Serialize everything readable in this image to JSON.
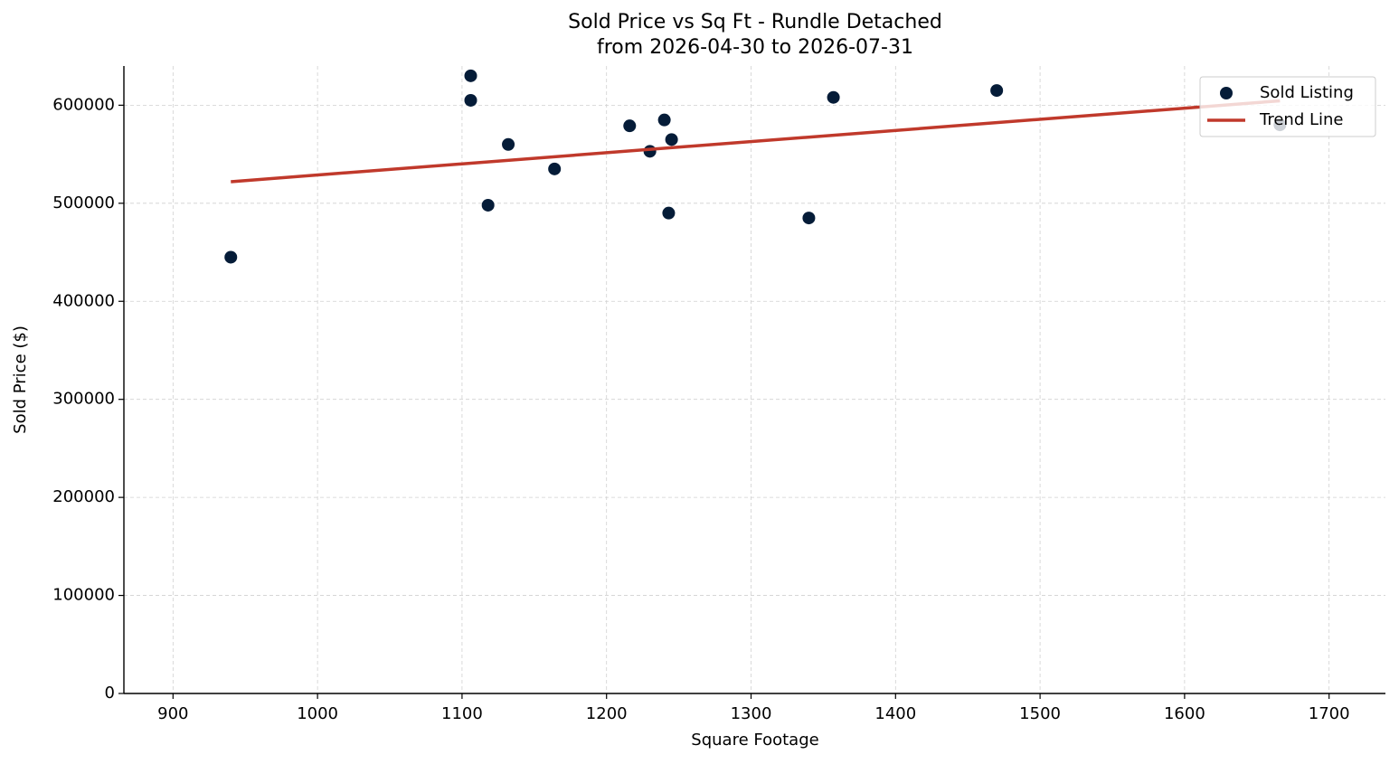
{
  "chart_data": {
    "type": "scatter",
    "title": "Sold Price vs Sq Ft - Rundle Detached",
    "subtitle": "from 2026-04-30 to 2026-07-31",
    "x_label": "Square Footage",
    "y_label": "Sold Price ($)",
    "xlim": [
      866,
      1739
    ],
    "ylim": [
      0,
      640000
    ],
    "xticks": [
      900,
      1000,
      1100,
      1200,
      1300,
      1400,
      1500,
      1600,
      1700
    ],
    "yticks": [
      0,
      100000,
      200000,
      300000,
      400000,
      500000,
      600000
    ],
    "grid": true,
    "legend": "upper-right",
    "series": [
      {
        "name": "Sold Listing",
        "type": "scatter",
        "color": "#051c38",
        "x": [
          940,
          1106,
          1106,
          1118,
          1132,
          1164,
          1216,
          1230,
          1240,
          1243,
          1245,
          1340,
          1357,
          1470,
          1666
        ],
        "values": [
          445000,
          630000,
          605000,
          498000,
          560000,
          535000,
          579000,
          553000,
          585000,
          490000,
          565000,
          485000,
          608000,
          615000,
          580000
        ]
      },
      {
        "name": "Trend Line",
        "type": "line",
        "color": "#c0392b",
        "x": [
          940,
          1666
        ],
        "values": [
          522000,
          604500
        ]
      }
    ]
  }
}
